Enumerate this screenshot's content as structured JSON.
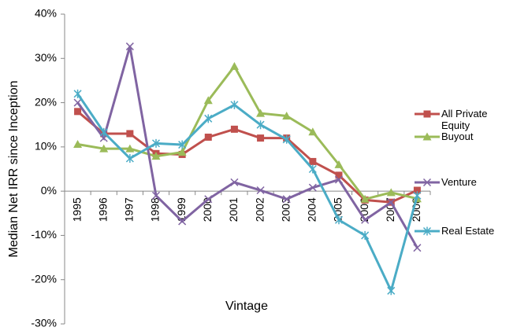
{
  "chart_data": {
    "type": "line",
    "categories": [
      "1995",
      "1996",
      "1997",
      "1998",
      "1999",
      "2000",
      "2001",
      "2002",
      "2003",
      "2004",
      "2005",
      "2006",
      "2007",
      "2008"
    ],
    "series": [
      {
        "name": "All Private Equity",
        "color": "#c0504d",
        "marker": "square",
        "values": [
          18,
          13,
          13,
          8.5,
          8.3,
          12.2,
          14,
          12,
          12,
          6.7,
          3.6,
          -2,
          -2.5,
          0.2
        ]
      },
      {
        "name": "Buyout",
        "color": "#9bbb59",
        "marker": "triangle",
        "values": [
          10.6,
          9.6,
          9.6,
          7.9,
          8.8,
          20.5,
          28.2,
          17.6,
          17,
          13.4,
          6,
          -1.8,
          -0.3,
          -1.7
        ]
      },
      {
        "name": "Venture",
        "color": "#8064a2",
        "marker": "x",
        "values": [
          20,
          12,
          32.7,
          -1,
          -6.8,
          -1.8,
          2,
          0.2,
          -1.8,
          0.8,
          2.6,
          -6.5,
          -2.5,
          -12.8
        ]
      },
      {
        "name": "Real Estate",
        "color": "#4bacc6",
        "marker": "asterisk",
        "values": [
          22,
          13.3,
          7.4,
          10.8,
          10.5,
          16.4,
          19.5,
          15,
          11.7,
          5,
          -6.5,
          -10,
          -22.5,
          -1
        ]
      }
    ],
    "xlabel": "Vintage",
    "ylabel": "Median Net IRR since Inception",
    "ylim": [
      -30,
      40
    ],
    "yticks": [
      {
        "value": -30,
        "label": "-30%"
      },
      {
        "value": -20,
        "label": "-20%"
      },
      {
        "value": -10,
        "label": "-10%"
      },
      {
        "value": 0,
        "label": "0%"
      },
      {
        "value": 10,
        "label": "10%"
      },
      {
        "value": 20,
        "label": "20%"
      },
      {
        "value": 30,
        "label": "30%"
      },
      {
        "value": 40,
        "label": "40%"
      }
    ],
    "grid": false,
    "legend": "right"
  }
}
